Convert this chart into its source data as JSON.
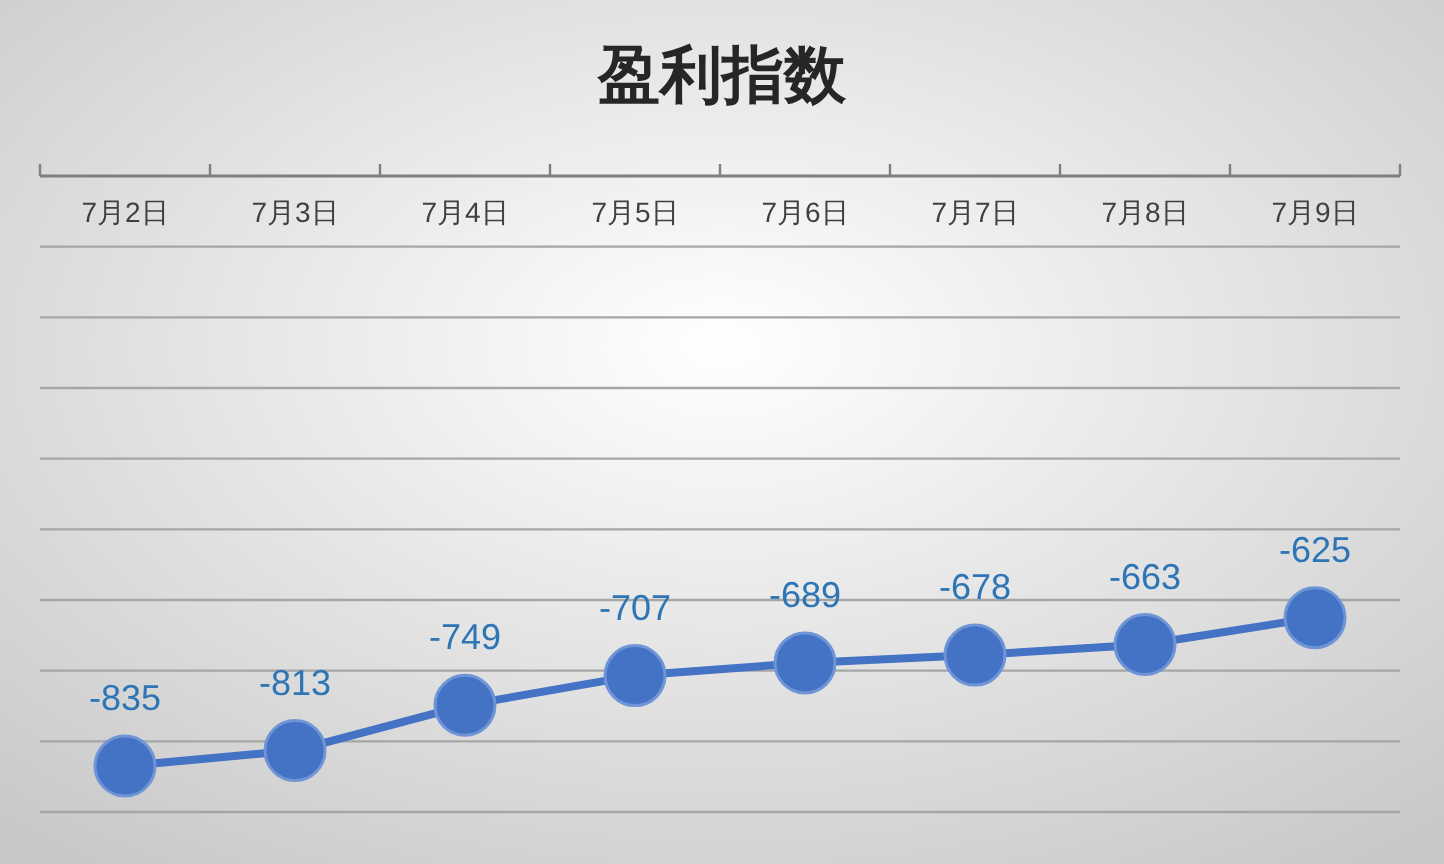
{
  "chart_data": {
    "type": "line",
    "title": "盈利指数",
    "categories": [
      "7月2日",
      "7月3日",
      "7月4日",
      "7月5日",
      "7月6日",
      "7月7日",
      "7月8日",
      "7月9日"
    ],
    "series": [
      {
        "color": "#4472c4",
        "values": [
          -835,
          -813,
          -749,
          -707,
          -689,
          -678,
          -663,
          -625
        ]
      }
    ],
    "ylim": [
      -900,
      0
    ],
    "yticks": [
      {
        "value": -900,
        "label": null
      },
      {
        "value": -800,
        "label": null
      },
      {
        "value": -700,
        "label": null
      },
      {
        "value": -600,
        "label": null
      },
      {
        "value": -500,
        "label": null
      },
      {
        "value": -400,
        "label": null
      },
      {
        "value": -300,
        "label": null
      },
      {
        "value": -200,
        "label": null
      },
      {
        "value": -100,
        "label": null
      },
      {
        "value": 0,
        "label": null
      }
    ],
    "grid": "y",
    "data_labels": true,
    "marker": "circle",
    "line_style": "solid",
    "tick_labels": "x"
  }
}
